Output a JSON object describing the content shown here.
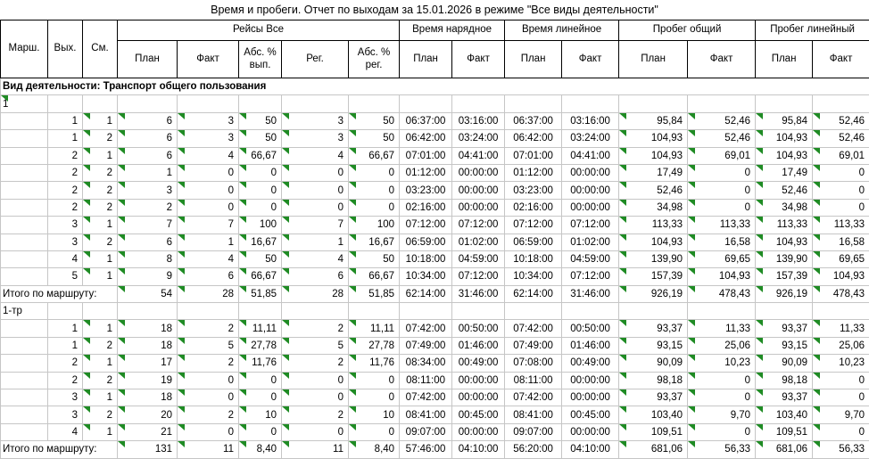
{
  "window": {
    "title": "Время и пробеги. Отчет по выходам за 15.01.2026 в режиме \"Все виды деятельности\""
  },
  "colors": {
    "flag_triangle_green": "#1f8b24",
    "grid_line": "#c6c6c6",
    "header_border": "#000000",
    "background": "#ffffff"
  },
  "table": {
    "fixed_headers": [
      "Марш.",
      "Вых.",
      "См."
    ],
    "groups": [
      {
        "label": "Рейсы Все",
        "cols": [
          "План",
          "Факт",
          "Абс. % вып.",
          "Рег.",
          "Абс. % рег."
        ]
      },
      {
        "label": "Время нарядное",
        "cols": [
          "План",
          "Факт"
        ]
      },
      {
        "label": "Время линейное",
        "cols": [
          "План",
          "Факт"
        ]
      },
      {
        "label": "Пробег общий",
        "cols": [
          "План",
          "Факт"
        ]
      },
      {
        "label": "Пробег линейный",
        "cols": [
          "План",
          "Факт"
        ]
      }
    ],
    "column_keys": [
      "vyh",
      "sm",
      "plan",
      "fakt",
      "abs_vyp",
      "reg",
      "abs_reg",
      "tn_plan",
      "tn_fakt",
      "tl_plan",
      "tl_fakt",
      "po_plan",
      "po_fakt",
      "pl_plan",
      "pl_fakt"
    ],
    "section_label": "Вид деятельности: Транспорт общего пользования",
    "total_label": "Итого по маршруту:",
    "sections": [
      {
        "route": "1",
        "route_flag": true,
        "rows": [
          [
            "1",
            "1",
            "6",
            "3",
            "50",
            "3",
            "50",
            "06:37:00",
            "03:16:00",
            "06:37:00",
            "03:16:00",
            "95,84",
            "52,46",
            "95,84",
            "52,46"
          ],
          [
            "1",
            "2",
            "6",
            "3",
            "50",
            "3",
            "50",
            "06:42:00",
            "03:24:00",
            "06:42:00",
            "03:24:00",
            "104,93",
            "52,46",
            "104,93",
            "52,46"
          ],
          [
            "2",
            "1",
            "6",
            "4",
            "66,67",
            "4",
            "66,67",
            "07:01:00",
            "04:41:00",
            "07:01:00",
            "04:41:00",
            "104,93",
            "69,01",
            "104,93",
            "69,01"
          ],
          [
            "2",
            "2",
            "1",
            "0",
            "0",
            "0",
            "0",
            "01:12:00",
            "00:00:00",
            "01:12:00",
            "00:00:00",
            "17,49",
            "0",
            "17,49",
            "0"
          ],
          [
            "2",
            "2",
            "3",
            "0",
            "0",
            "0",
            "0",
            "03:23:00",
            "00:00:00",
            "03:23:00",
            "00:00:00",
            "52,46",
            "0",
            "52,46",
            "0"
          ],
          [
            "2",
            "2",
            "2",
            "0",
            "0",
            "0",
            "0",
            "02:16:00",
            "00:00:00",
            "02:16:00",
            "00:00:00",
            "34,98",
            "0",
            "34,98",
            "0"
          ],
          [
            "3",
            "1",
            "7",
            "7",
            "100",
            "7",
            "100",
            "07:12:00",
            "07:12:00",
            "07:12:00",
            "07:12:00",
            "113,33",
            "113,33",
            "113,33",
            "113,33"
          ],
          [
            "3",
            "2",
            "6",
            "1",
            "16,67",
            "1",
            "16,67",
            "06:59:00",
            "01:02:00",
            "06:59:00",
            "01:02:00",
            "104,93",
            "16,58",
            "104,93",
            "16,58"
          ],
          [
            "4",
            "1",
            "8",
            "4",
            "50",
            "4",
            "50",
            "10:18:00",
            "04:59:00",
            "10:18:00",
            "04:59:00",
            "139,90",
            "69,65",
            "139,90",
            "69,65"
          ],
          [
            "5",
            "1",
            "9",
            "6",
            "66,67",
            "6",
            "66,67",
            "10:34:00",
            "07:12:00",
            "10:34:00",
            "07:12:00",
            "157,39",
            "104,93",
            "157,39",
            "104,93"
          ]
        ],
        "total": [
          "54",
          "28",
          "51,85",
          "28",
          "51,85",
          "62:14:00",
          "31:46:00",
          "62:14:00",
          "31:46:00",
          "926,19",
          "478,43",
          "926,19",
          "478,43"
        ]
      },
      {
        "route": "1-тр",
        "route_flag": false,
        "rows": [
          [
            "1",
            "1",
            "18",
            "2",
            "11,11",
            "2",
            "11,11",
            "07:42:00",
            "00:50:00",
            "07:42:00",
            "00:50:00",
            "93,37",
            "11,33",
            "93,37",
            "11,33"
          ],
          [
            "1",
            "2",
            "18",
            "5",
            "27,78",
            "5",
            "27,78",
            "07:49:00",
            "01:46:00",
            "07:49:00",
            "01:46:00",
            "93,15",
            "25,06",
            "93,15",
            "25,06"
          ],
          [
            "2",
            "1",
            "17",
            "2",
            "11,76",
            "2",
            "11,76",
            "08:34:00",
            "00:49:00",
            "07:08:00",
            "00:49:00",
            "90,09",
            "10,23",
            "90,09",
            "10,23"
          ],
          [
            "2",
            "2",
            "19",
            "0",
            "0",
            "0",
            "0",
            "08:11:00",
            "00:00:00",
            "08:11:00",
            "00:00:00",
            "98,18",
            "0",
            "98,18",
            "0"
          ],
          [
            "3",
            "1",
            "18",
            "0",
            "0",
            "0",
            "0",
            "07:42:00",
            "00:00:00",
            "07:42:00",
            "00:00:00",
            "93,37",
            "0",
            "93,37",
            "0"
          ],
          [
            "3",
            "2",
            "20",
            "2",
            "10",
            "2",
            "10",
            "08:41:00",
            "00:45:00",
            "08:41:00",
            "00:45:00",
            "103,40",
            "9,70",
            "103,40",
            "9,70"
          ],
          [
            "4",
            "1",
            "21",
            "0",
            "0",
            "0",
            "0",
            "09:07:00",
            "00:00:00",
            "09:07:00",
            "00:00:00",
            "109,51",
            "0",
            "109,51",
            "0"
          ]
        ],
        "total": [
          "131",
          "11",
          "8,40",
          "11",
          "8,40",
          "57:46:00",
          "04:10:00",
          "56:20:00",
          "04:10:00",
          "681,06",
          "56,33",
          "681,06",
          "56,33"
        ]
      }
    ]
  }
}
